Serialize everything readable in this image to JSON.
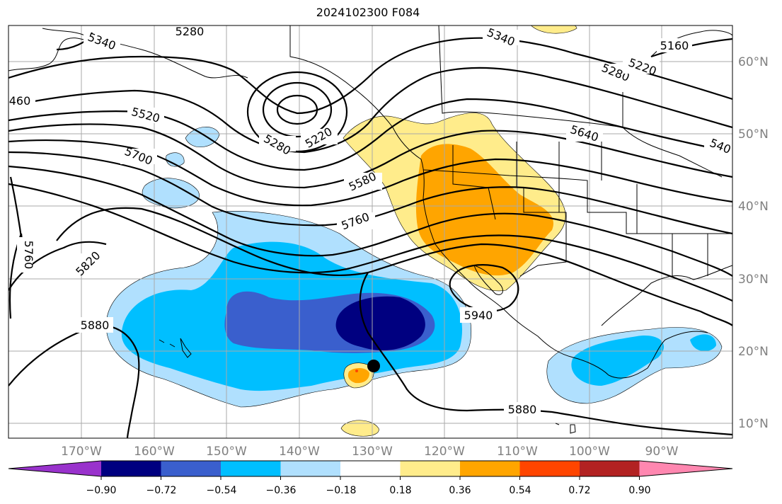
{
  "title": "2024102300 F084",
  "contour_labels": [
    {
      "text": "5340",
      "name": "contour-label-5340-west"
    },
    {
      "text": "5280",
      "name": "contour-label-5280-north"
    },
    {
      "text": "5340",
      "name": "contour-label-5340-east"
    },
    {
      "text": "5160",
      "name": "contour-label-5160"
    },
    {
      "text": "5280",
      "name": "contour-label-5280-east"
    },
    {
      "text": "5220",
      "name": "contour-label-5220-east"
    },
    {
      "text": "460",
      "name": "contour-label-5460-edge"
    },
    {
      "text": "5520",
      "name": "contour-label-5520"
    },
    {
      "text": "5220",
      "name": "contour-label-5220-low"
    },
    {
      "text": "5280",
      "name": "contour-label-5280-low"
    },
    {
      "text": "5640",
      "name": "contour-label-5640"
    },
    {
      "text": "540",
      "name": "contour-label-5400-edge"
    },
    {
      "text": "5700",
      "name": "contour-label-5700"
    },
    {
      "text": "5580",
      "name": "contour-label-5580"
    },
    {
      "text": "5760",
      "name": "contour-label-5760"
    },
    {
      "text": "5760",
      "name": "contour-label-5760-vertical"
    },
    {
      "text": "5820",
      "name": "contour-label-5820"
    },
    {
      "text": "5880",
      "name": "contour-label-5880-west"
    },
    {
      "text": "5940",
      "name": "contour-label-5940"
    },
    {
      "text": "5880",
      "name": "contour-label-5880-south"
    }
  ],
  "longitude_labels": [
    "170°W",
    "160°W",
    "150°W",
    "140°W",
    "130°W",
    "120°W",
    "110°W",
    "100°W",
    "90°W"
  ],
  "latitude_labels": [
    "60°N",
    "50°N",
    "40°N",
    "30°N",
    "20°N",
    "10°N"
  ],
  "colorbar": {
    "ticks": [
      "−0.90",
      "−0.72",
      "−0.54",
      "−0.36",
      "−0.18",
      "0.18",
      "0.36",
      "0.54",
      "0.72",
      "0.90"
    ],
    "colors": [
      "#9932cc",
      "#000080",
      "#3a5fcd",
      "#00bfff",
      "#b0e0fe",
      "#ffffff",
      "#ffec8b",
      "#ffa500",
      "#ff4500",
      "#b22222",
      "#ff87b0"
    ]
  },
  "colors": {
    "ocean": "#ffffff",
    "land_lines": "#000000",
    "grid": "#aaaaaa"
  }
}
